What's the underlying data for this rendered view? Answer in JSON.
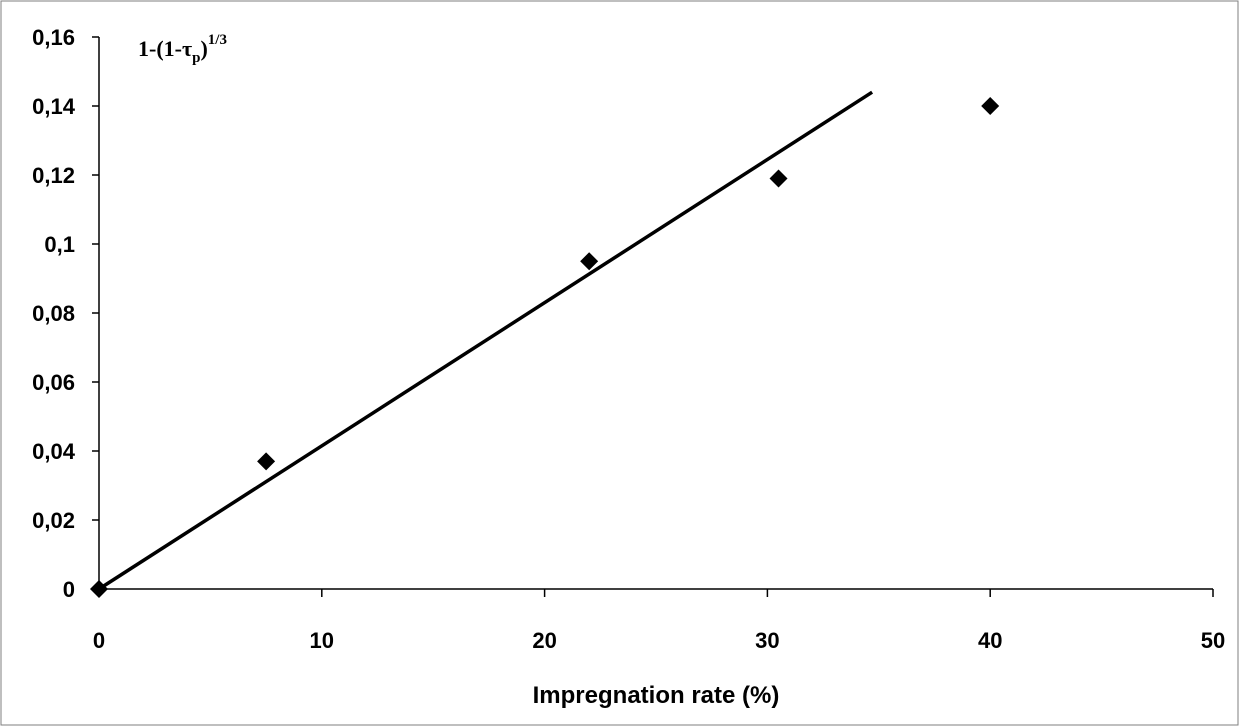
{
  "chart_data": {
    "type": "scatter",
    "title": "",
    "xlabel": "Impregnation rate (%)",
    "ylabel": {
      "base": "1-(1-τ",
      "subscript": "p",
      "close": ")",
      "superscript": "1/3"
    },
    "xlim": [
      0,
      50
    ],
    "ylim": [
      0,
      0.16
    ],
    "x_ticks": [
      "0",
      "10",
      "20",
      "30",
      "40",
      "50"
    ],
    "y_ticks": [
      "0",
      "0,02",
      "0,04",
      "0,06",
      "0,08",
      "0,1",
      "0,12",
      "0,14",
      "0,16"
    ],
    "grid": false,
    "legend": "none",
    "series": [
      {
        "marker": "diamond",
        "x": [
          0,
          7.5,
          22,
          30.5,
          40
        ],
        "y": [
          0,
          0.037,
          0.095,
          0.119,
          0.14
        ]
      }
    ],
    "trendline": {
      "x": [
        0,
        34.7
      ],
      "y": [
        0,
        0.144
      ]
    },
    "colors": {
      "marker": "#000000",
      "line": "#000000",
      "axis": "#000000",
      "frame": "#7f7f7f"
    }
  }
}
